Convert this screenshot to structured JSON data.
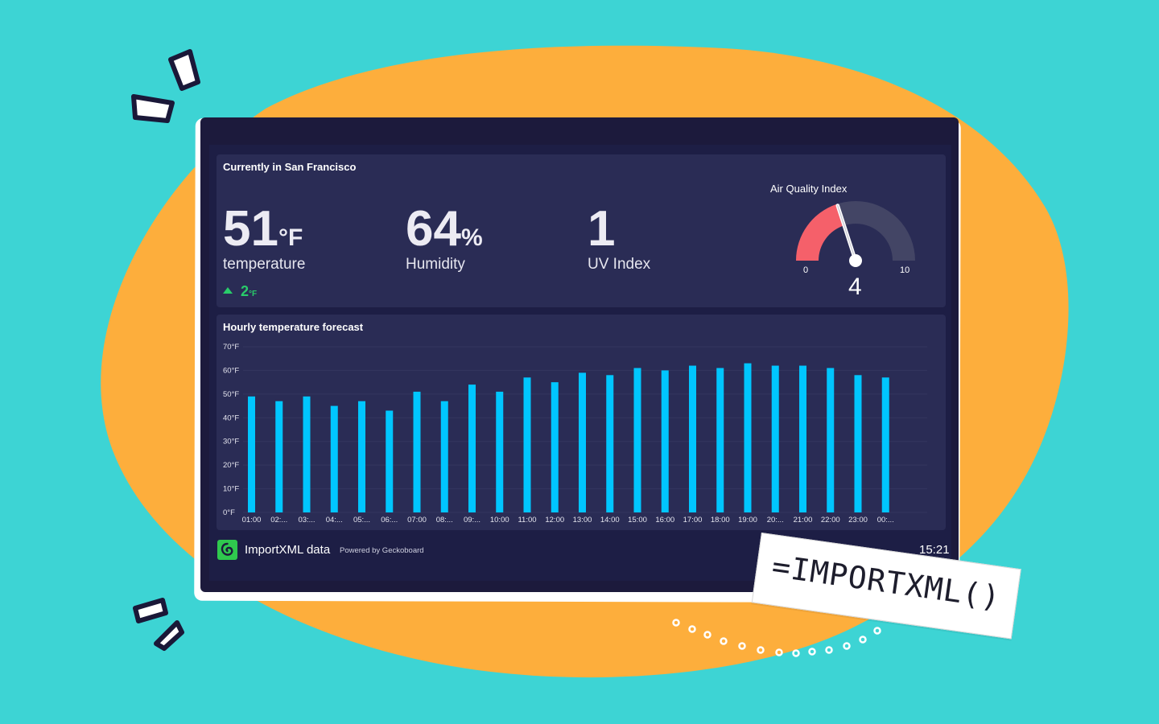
{
  "colors": {
    "background": "#3dd4d4",
    "blob": "#fdae3c",
    "screen": "#1c1a3c",
    "panel": "#2a2c55",
    "bar": "#00c6ff",
    "gauge_fill": "#f5606a",
    "gauge_track": "#434565",
    "positive": "#29cc6a"
  },
  "current": {
    "title": "Currently in San Francisco",
    "temperature": {
      "value": "51",
      "unit": "°F",
      "label": "temperature"
    },
    "change": {
      "value": "2",
      "unit": "°F",
      "direction": "up"
    },
    "humidity": {
      "value": "64",
      "unit": "%",
      "label": "Humidity"
    },
    "uv": {
      "value": "1",
      "label": "UV Index"
    },
    "aqi": {
      "title": "Air Quality Index",
      "min": "0",
      "max": "10",
      "value": "4",
      "fill_fraction": 0.4
    }
  },
  "forecast": {
    "title": "Hourly temperature forecast"
  },
  "chart_data": {
    "type": "bar",
    "categories": [
      "01:00",
      "02:...",
      "03:...",
      "04:...",
      "05:...",
      "06:...",
      "07:00",
      "08:...",
      "09:...",
      "10:00",
      "11:00",
      "12:00",
      "13:00",
      "14:00",
      "15:00",
      "16:00",
      "17:00",
      "18:00",
      "19:00",
      "20:...",
      "21:00",
      "22:00",
      "23:00",
      "00:..."
    ],
    "values": [
      49,
      47,
      49,
      45,
      47,
      43,
      51,
      47,
      54,
      51,
      57,
      55,
      59,
      58,
      61,
      60,
      62,
      61,
      63,
      62,
      62,
      61,
      58,
      57
    ],
    "y_ticks": [
      "70°F",
      "60°F",
      "50°F",
      "40°F",
      "30°F",
      "20°F",
      "10°F",
      "0°F"
    ],
    "ylim": [
      0,
      70
    ],
    "grid": true
  },
  "footer": {
    "name": "ImportXML data",
    "powered": "Powered by Geckoboard",
    "time": "15:21"
  },
  "formula": "=IMPORTXML()"
}
